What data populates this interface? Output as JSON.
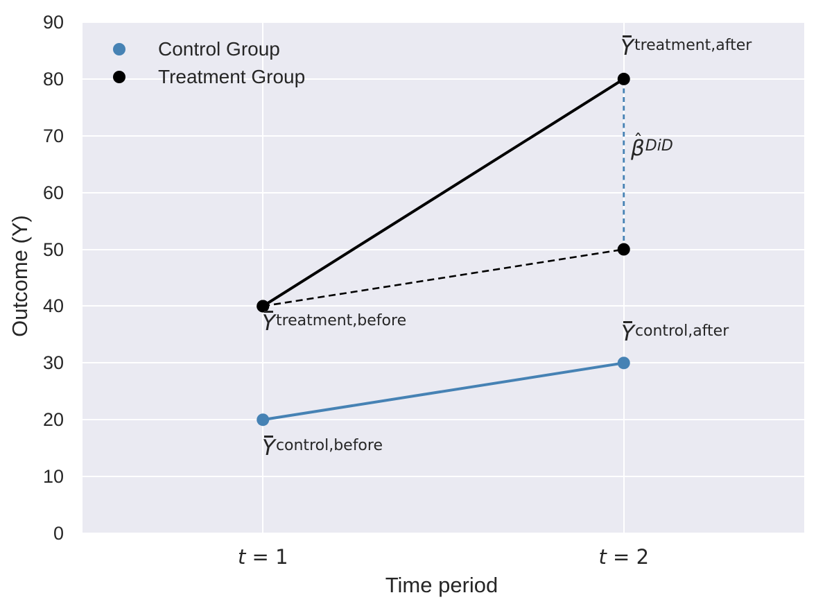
{
  "figure": {
    "background": "#ffffff",
    "plot_background": "#eaeaf2",
    "grid_color": "#ffffff",
    "text_color": "#262626"
  },
  "axes": {
    "y_label": "Outcome (Y)",
    "x_label": "Time period",
    "x_ticks": [
      {
        "var": "t",
        "eq": " = 1"
      },
      {
        "var": "t",
        "eq": " = 2"
      }
    ]
  },
  "legend": {
    "items": [
      {
        "label": "Control Group",
        "color": "#4682b4"
      },
      {
        "label": "Treatment Group",
        "color": "#000000"
      }
    ]
  },
  "annotations": {
    "treatment_after": {
      "base": "Y",
      "accent": "bar",
      "sup": "treatment,after"
    },
    "did_effect": {
      "base": "β",
      "accent": "hat",
      "sup": "DiD"
    },
    "control_after": {
      "base": "Y",
      "accent": "bar",
      "sup": "control,after"
    },
    "treatment_before": {
      "base": "Y",
      "accent": "bar",
      "sup": "treatment,before"
    },
    "control_before": {
      "base": "Y",
      "accent": "bar",
      "sup": "control,before"
    }
  },
  "chart_data": {
    "type": "line",
    "x": [
      1,
      2
    ],
    "x_tick_labels": [
      "t = 1",
      "t = 2"
    ],
    "xlabel": "Time period",
    "ylabel": "Outcome (Y)",
    "xlim": [
      0.5,
      2.5
    ],
    "ylim": [
      0,
      90
    ],
    "y_ticks": [
      0,
      10,
      20,
      30,
      40,
      50,
      60,
      70,
      80,
      90
    ],
    "grid": true,
    "legend_position": "upper left",
    "series": [
      {
        "name": "Control Group",
        "values": [
          20,
          30
        ],
        "color": "#4682b4",
        "line_style": "solid",
        "marker": "circle",
        "in_legend": true
      },
      {
        "name": "Treatment Group",
        "values": [
          40,
          80
        ],
        "color": "#000000",
        "line_style": "solid",
        "marker": "circle",
        "in_legend": true
      },
      {
        "name": "",
        "values": [
          40,
          50
        ],
        "color": "#000000",
        "line_style": "dashed",
        "marker": "circle",
        "in_legend": false
      }
    ],
    "did_bracket": {
      "x": 2,
      "y_from": 50,
      "y_to": 80,
      "color": "#4682b4",
      "line_style": "dashed",
      "label": "β̂^DiD"
    },
    "point_annotations": [
      {
        "label": "Ȳ^treatment,after",
        "x": 2,
        "y": 80,
        "placement": "above-right"
      },
      {
        "label": "β̂^DiD",
        "x": 2,
        "y": 65,
        "placement": "right"
      },
      {
        "label": "Ȳ^control,after",
        "x": 2,
        "y": 30,
        "placement": "above-right"
      },
      {
        "label": "Ȳ^treatment,before",
        "x": 1,
        "y": 40,
        "placement": "below-right"
      },
      {
        "label": "Ȳ^control,before",
        "x": 1,
        "y": 20,
        "placement": "below-right"
      }
    ]
  }
}
